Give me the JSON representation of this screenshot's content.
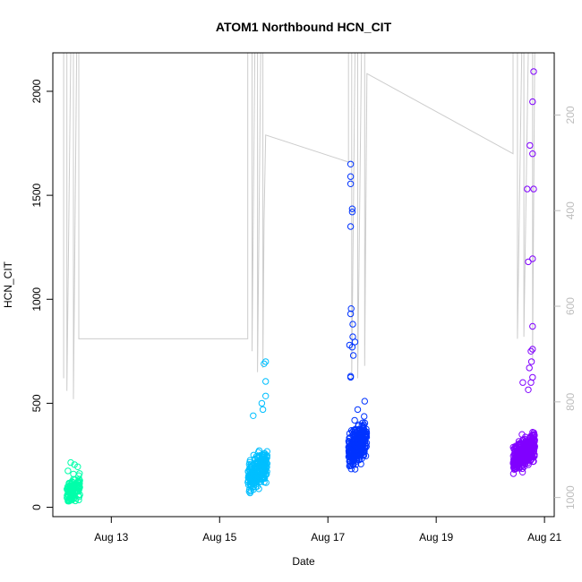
{
  "chart_data": {
    "type": "scatter",
    "title": "ATOM1 Northbound HCN_CIT",
    "xlabel": "Date",
    "ylabel": "HCN_CIT",
    "x_ticks": [
      "Aug 13",
      "Aug 15",
      "Aug 17",
      "Aug 19",
      "Aug 21"
    ],
    "x_tick_values": [
      13,
      15,
      17,
      19,
      21
    ],
    "xlim": [
      11.92,
      21.18
    ],
    "ylim": [
      -45,
      2185
    ],
    "y_ticks": [
      0,
      500,
      1000,
      1500,
      2000
    ],
    "right_axis": {
      "label": "",
      "ticks": [
        200,
        400,
        600,
        800,
        1000
      ],
      "ylim": [
        70,
        1040
      ],
      "reversed": true,
      "color": "#bdbdbd"
    },
    "grid": false,
    "legend": "none",
    "colors": {
      "flight1": "#00FFAA",
      "flight2": "#00BFFF",
      "flight3": "#0033FF",
      "flight4": "#8000FF",
      "altitude_line": "#cccccc"
    },
    "series": [
      {
        "x_range": [
          12.18,
          12.42
        ],
        "y_center": 90,
        "y_spread": 55,
        "y_min": 30,
        "y_max": 215,
        "color": "flight1",
        "count": 110,
        "points": [
          [
            12.25,
            215
          ],
          [
            12.32,
            205
          ],
          [
            12.38,
            195
          ],
          [
            12.2,
            175
          ],
          [
            12.3,
            160
          ],
          [
            12.22,
            30
          ],
          [
            12.4,
            35
          ]
        ]
      },
      {
        "x_range": [
          15.52,
          15.88
        ],
        "y_center": 180,
        "y_spread": 85,
        "y_min": 30,
        "y_max": 700,
        "color": "flight2",
        "count": 220,
        "points": [
          [
            15.85,
            700
          ],
          [
            15.82,
            690
          ],
          [
            15.85,
            605
          ],
          [
            15.85,
            535
          ],
          [
            15.78,
            500
          ],
          [
            15.62,
            440
          ],
          [
            15.8,
            470
          ]
        ]
      },
      {
        "x_range": [
          17.38,
          17.72
        ],
        "y_center": 300,
        "y_spread": 90,
        "y_min": 90,
        "y_max": 1650,
        "color": "flight3",
        "count": 260,
        "points": [
          [
            17.42,
            1650
          ],
          [
            17.42,
            1590
          ],
          [
            17.42,
            1555
          ],
          [
            17.45,
            1435
          ],
          [
            17.45,
            1420
          ],
          [
            17.42,
            1350
          ],
          [
            17.43,
            955
          ],
          [
            17.42,
            930
          ],
          [
            17.46,
            880
          ],
          [
            17.46,
            820
          ],
          [
            17.5,
            795
          ],
          [
            17.45,
            770
          ],
          [
            17.4,
            780
          ],
          [
            17.47,
            730
          ],
          [
            17.42,
            630
          ],
          [
            17.42,
            625
          ],
          [
            17.68,
            510
          ],
          [
            17.55,
            470
          ]
        ]
      },
      {
        "x_range": [
          20.42,
          20.82
        ],
        "y_center": 265,
        "y_spread": 70,
        "y_min": 75,
        "y_max": 2100,
        "color": "flight4",
        "count": 340,
        "points": [
          [
            20.8,
            2095
          ],
          [
            20.78,
            1950
          ],
          [
            20.73,
            1740
          ],
          [
            20.78,
            1700
          ],
          [
            20.68,
            1530
          ],
          [
            20.8,
            1530
          ],
          [
            20.78,
            1195
          ],
          [
            20.7,
            1180
          ],
          [
            20.78,
            870
          ],
          [
            20.78,
            760
          ],
          [
            20.75,
            750
          ],
          [
            20.76,
            700
          ],
          [
            20.72,
            670
          ],
          [
            20.78,
            625
          ],
          [
            20.6,
            600
          ],
          [
            20.75,
            600
          ],
          [
            20.7,
            565
          ]
        ]
      }
    ],
    "altitude_spikes": {
      "description": "",
      "profile": [
        [
          12.12,
          620
        ],
        [
          12.12,
          2200
        ],
        [
          12.18,
          2200
        ],
        [
          12.18,
          560
        ],
        [
          12.25,
          2200
        ],
        [
          12.3,
          2200
        ],
        [
          12.3,
          520
        ],
        [
          12.36,
          2200
        ],
        [
          12.4,
          2200
        ],
        [
          12.4,
          810
        ],
        [
          15.52,
          810
        ],
        [
          15.52,
          2200
        ],
        [
          15.6,
          2200
        ],
        [
          15.6,
          750
        ],
        [
          15.65,
          2200
        ],
        [
          15.7,
          2200
        ],
        [
          15.7,
          650
        ],
        [
          15.76,
          2200
        ],
        [
          15.8,
          2200
        ],
        [
          15.8,
          670
        ],
        [
          15.82,
          1380
        ],
        [
          15.85,
          1790
        ],
        [
          17.38,
          1660
        ],
        [
          17.38,
          2200
        ],
        [
          17.44,
          2200
        ],
        [
          17.44,
          620
        ],
        [
          17.5,
          2200
        ],
        [
          17.55,
          2200
        ],
        [
          17.55,
          620
        ],
        [
          17.62,
          2200
        ],
        [
          17.68,
          2200
        ],
        [
          17.68,
          680
        ],
        [
          17.72,
          2085
        ],
        [
          20.42,
          1700
        ],
        [
          20.42,
          2200
        ],
        [
          20.5,
          2200
        ],
        [
          20.5,
          810
        ],
        [
          20.58,
          2200
        ],
        [
          20.62,
          2200
        ],
        [
          20.62,
          820
        ],
        [
          20.7,
          2200
        ],
        [
          20.78,
          2200
        ],
        [
          20.78,
          700
        ],
        [
          20.82,
          2200
        ]
      ]
    }
  }
}
